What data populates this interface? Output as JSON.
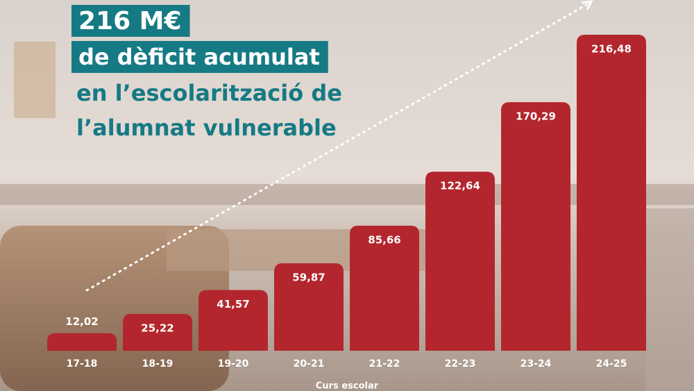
{
  "chart_data": {
    "type": "bar",
    "title": [
      "216 M€",
      "de dèficit acumulat",
      "en l’escolarització de",
      "l’alumnat vulnerable"
    ],
    "x_label": "Curs escolar",
    "categories": [
      "17-18",
      "18-19",
      "19-20",
      "20-21",
      "21-22",
      "22-23",
      "23-24",
      "24-25"
    ],
    "values": [
      12.02,
      25.22,
      41.57,
      59.87,
      85.66,
      122.64,
      170.29,
      216.48
    ],
    "value_labels": [
      "12,02",
      "25,22",
      "41,57",
      "59,87",
      "85,66",
      "122,64",
      "170,29",
      "216,48"
    ],
    "color": "#b3262d"
  }
}
